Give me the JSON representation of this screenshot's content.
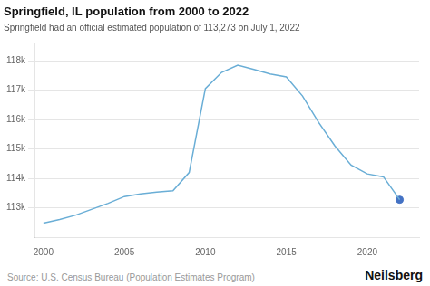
{
  "chart_data": {
    "type": "line",
    "title": "Springfield, IL population from 2000 to 2022",
    "subtitle": "Springfield had an official estimated population of 113,273 on July 1, 2022",
    "source": "Source: U.S. Census Bureau (Population Estimates Program)",
    "brand": "Neilsberg",
    "x": [
      2000,
      2001,
      2002,
      2003,
      2004,
      2005,
      2006,
      2007,
      2008,
      2009,
      2010,
      2011,
      2012,
      2013,
      2014,
      2015,
      2016,
      2017,
      2018,
      2019,
      2020,
      2021,
      2022
    ],
    "series": [
      {
        "type": "line",
        "color": "#6aaed6",
        "marker": "none",
        "values": [
          112480,
          112600,
          112750,
          112950,
          113150,
          113380,
          113470,
          113530,
          113580,
          114200,
          117050,
          117600,
          117850,
          117700,
          117550,
          117450,
          116800,
          115900,
          115100,
          114450,
          114150,
          114050,
          113273
        ]
      },
      {
        "type": "scatter",
        "color": "#4472c4",
        "marker": "circle",
        "x": [
          2022
        ],
        "values": [
          113273
        ]
      }
    ],
    "xlim": [
      1999.5,
      2023.2
    ],
    "xticks": [
      2000,
      2005,
      2010,
      2015,
      2020
    ],
    "ylim": [
      112000,
      118600
    ],
    "yticks": [
      {
        "value": 113000,
        "label": "113k"
      },
      {
        "value": 114000,
        "label": "114k"
      },
      {
        "value": 115000,
        "label": "115k"
      },
      {
        "value": 116000,
        "label": "116k"
      },
      {
        "value": 117000,
        "label": "117k"
      },
      {
        "value": 118000,
        "label": "118k"
      }
    ],
    "grid": "y"
  }
}
